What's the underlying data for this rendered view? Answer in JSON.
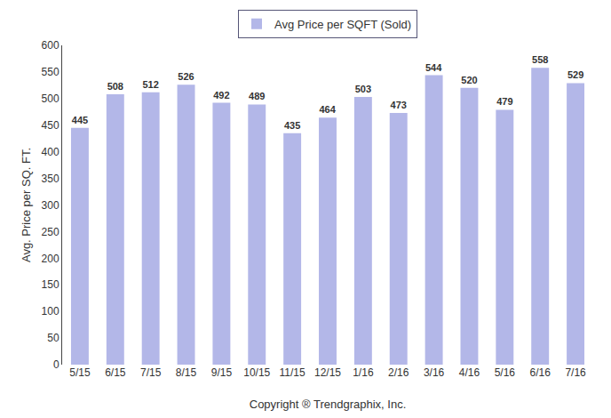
{
  "chart_data": {
    "type": "bar",
    "xlabel": "Copyright ® Trendgraphix, Inc.",
    "ylabel": "Avg. Price per SQ. FT.",
    "categories": [
      "5/15",
      "6/15",
      "7/15",
      "8/15",
      "9/15",
      "10/15",
      "11/15",
      "12/15",
      "1/16",
      "2/16",
      "3/16",
      "4/16",
      "5/16",
      "6/16",
      "7/16"
    ],
    "series": [
      {
        "name": "Avg Price per SQFT (Sold)",
        "color": "#b3b7e8",
        "values": [
          445,
          508,
          512,
          526,
          492,
          489,
          435,
          464,
          503,
          473,
          544,
          520,
          479,
          558,
          529
        ]
      }
    ],
    "ylim": [
      0,
      600
    ],
    "yticks": [
      0,
      50,
      100,
      150,
      200,
      250,
      300,
      350,
      400,
      450,
      500,
      550,
      600
    ],
    "grid": false,
    "legend": "top",
    "data_labels": true
  }
}
